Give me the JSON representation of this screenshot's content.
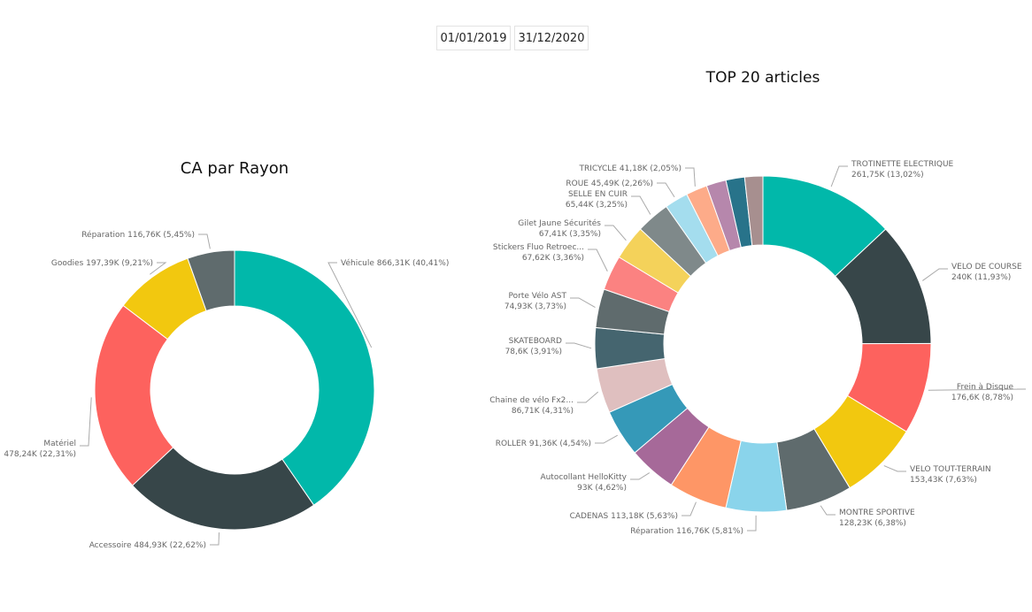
{
  "filters": {
    "start_date": "01/01/2019",
    "end_date": "31/12/2020"
  },
  "chart_data": [
    {
      "type": "pie",
      "variant": "donut",
      "title": "CA par Rayon",
      "labels": [
        "Véhicule",
        "Accessoire",
        "Matériel",
        "Goodies",
        "Réparation"
      ],
      "values_text": [
        "866,31K",
        "484,93K",
        "478,24K",
        "197,39K",
        "116,76K"
      ],
      "values": [
        866.31,
        484.93,
        478.24,
        197.39,
        116.76
      ],
      "percent_text": [
        "40,41%",
        "22,62%",
        "22,31%",
        "9,21%",
        "5,45%"
      ],
      "percents": [
        40.41,
        22.62,
        22.31,
        9.21,
        5.45
      ],
      "colors": [
        "#01B8AA",
        "#374649",
        "#FD625E",
        "#F2C80F",
        "#5F6B6D"
      ]
    },
    {
      "type": "pie",
      "variant": "donut",
      "title": "TOP 20 articles",
      "labels": [
        "TROTINETTE ELECTRIQUE",
        "VELO DE COURSE",
        "Frein à Disque",
        "VELO TOUT-TERRAIN",
        "MONTRE SPORTIVE",
        "Réparation",
        "CADENAS",
        "Autocollant HelloKitty",
        "ROLLER",
        "Chaine de vélo Fx2...",
        "SKATEBOARD",
        "Porte Vélo AST",
        "Stickers Fluo Retroec...",
        "Gilet Jaune Sécurités",
        "SELLE EN CUIR",
        "ROUE",
        "TRICYCLE",
        "",
        "",
        ""
      ],
      "values_text": [
        "261,75K",
        "240K",
        "176,6K",
        "153,43K",
        "128,23K",
        "116,76K",
        "113,18K",
        "93K",
        "91,36K",
        "86,71K",
        "78,6K",
        "74,93K",
        "67,62K",
        "67,41K",
        "65,44K",
        "45,49K",
        "41,18K",
        "",
        "",
        ""
      ],
      "values": [
        261.75,
        240,
        176.6,
        153.43,
        128.23,
        116.76,
        113.18,
        93,
        91.36,
        86.71,
        78.6,
        74.93,
        67.62,
        67.41,
        65.44,
        45.49,
        41.18,
        38,
        36,
        35
      ],
      "percent_text": [
        "13,02%",
        "11,93%",
        "8,78%",
        "7,63%",
        "6,38%",
        "5,81%",
        "5,63%",
        "4,62%",
        "4,54%",
        "4,31%",
        "3,91%",
        "3,73%",
        "3,36%",
        "3,35%",
        "3,25%",
        "2,26%",
        "2,05%",
        "",
        "",
        ""
      ],
      "percents": [
        13.02,
        11.93,
        8.78,
        7.63,
        6.38,
        5.81,
        5.63,
        4.62,
        4.54,
        4.31,
        3.91,
        3.73,
        3.36,
        3.35,
        3.25,
        2.26,
        2.05,
        1.9,
        1.8,
        1.74
      ],
      "colors": [
        "#01B8AA",
        "#374649",
        "#FD625E",
        "#F2C80F",
        "#5F6B6D",
        "#8AD4EB",
        "#FE9666",
        "#A66999",
        "#3599B8",
        "#DFBFBF",
        "#45656F",
        "#5F6B6D",
        "#FB8281",
        "#F4D25A",
        "#7F898A",
        "#A4DDEE",
        "#FDAB89",
        "#B687AC",
        "#28738A",
        "#A78F8F"
      ]
    }
  ]
}
